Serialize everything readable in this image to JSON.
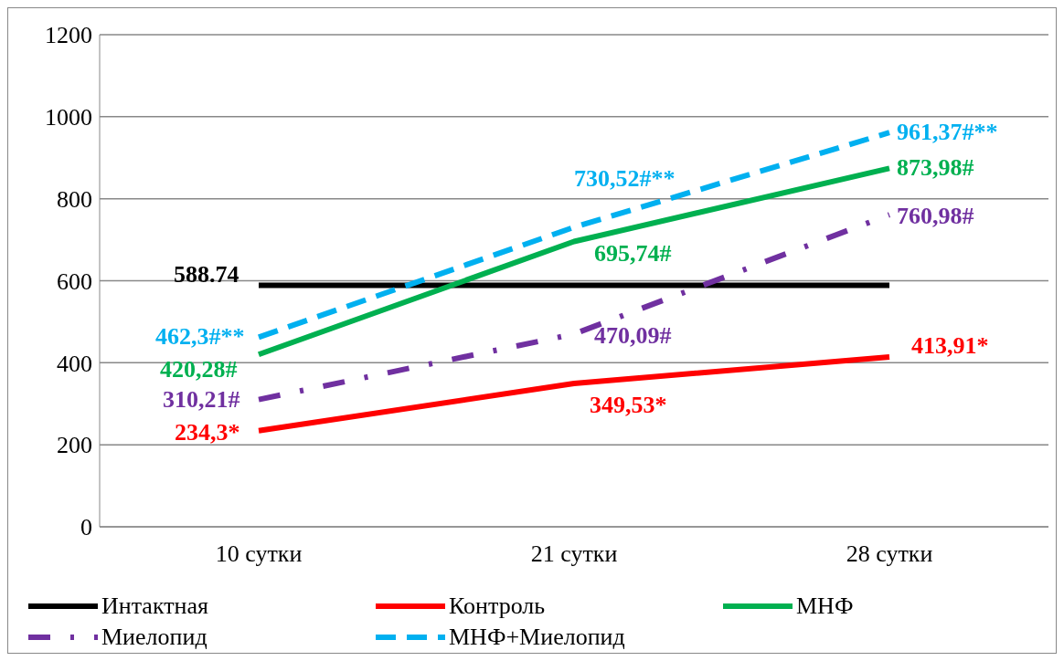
{
  "chart_data": {
    "type": "line",
    "categories": [
      "10 сутки",
      "21 сутки",
      "28 сутки"
    ],
    "series": [
      {
        "name": "Интактная",
        "color": "#000000",
        "values": [
          588.74,
          588.74,
          588.74
        ],
        "value_labels": [
          "588.74",
          null,
          null
        ],
        "line_style": "solid"
      },
      {
        "name": "Контроль",
        "color": "#ff0000",
        "values": [
          234.3,
          349.53,
          413.91
        ],
        "value_labels": [
          "234,3*",
          "349,53*",
          "413,91*"
        ],
        "line_style": "solid"
      },
      {
        "name": "МНФ",
        "color": "#00b050",
        "values": [
          420.28,
          695.74,
          873.98
        ],
        "value_labels": [
          "420,28#",
          "695,74#",
          "873,98#"
        ],
        "line_style": "solid"
      },
      {
        "name": "Миелопид",
        "color": "#7030a0",
        "values": [
          310.21,
          470.09,
          760.98
        ],
        "value_labels": [
          "310,21#",
          "470,09#",
          "760,98#"
        ],
        "line_style": "dashdot"
      },
      {
        "name": "МНФ+Миелопид",
        "color": "#00b0f0",
        "values": [
          462.3,
          730.52,
          961.37
        ],
        "value_labels": [
          "462,3#**",
          "730,52#**",
          "961,37#**"
        ],
        "line_style": "dashed"
      }
    ],
    "ylim": [
      0,
      1200
    ],
    "yticks": [
      0,
      200,
      400,
      600,
      800,
      1000,
      1200
    ],
    "grid": "y",
    "legend": "bottom",
    "marker": "none"
  }
}
